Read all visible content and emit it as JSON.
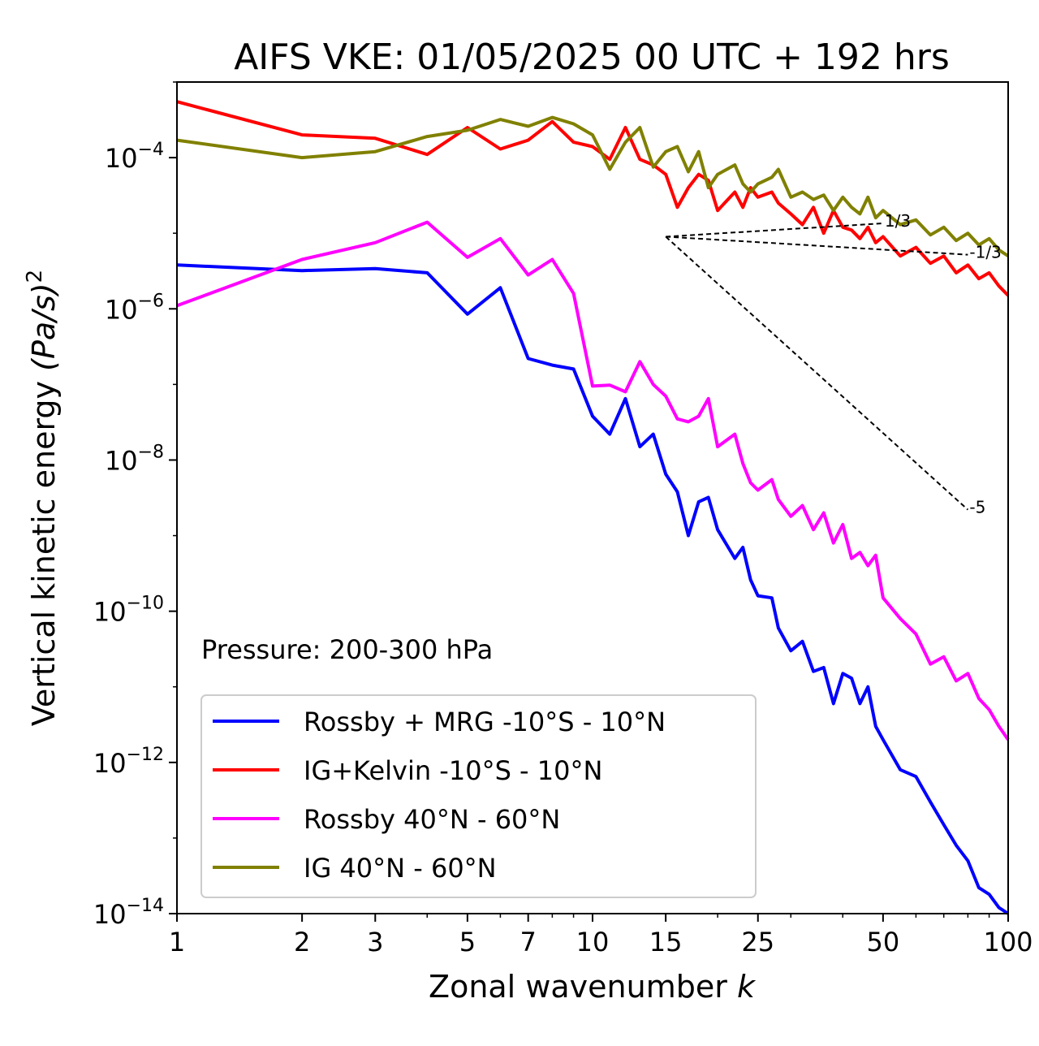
{
  "chart_data": {
    "type": "line",
    "title": "AIFS VKE: 01/05/2025 00 UTC + 192 hrs",
    "xlabel": "Zonal wavenumber",
    "xlabel_var": "k",
    "ylabel": "Vertical kinetic energy",
    "ylabel_units": "(Pa/s)",
    "ylabel_units_exp": "2",
    "xscale": "log",
    "yscale": "log",
    "xlim": [
      1,
      100
    ],
    "ylim": [
      1e-14,
      0.001
    ],
    "x_ticks": [
      1,
      2,
      3,
      5,
      7,
      10,
      15,
      25,
      50,
      100
    ],
    "x_tick_labels": [
      "1",
      "2",
      "3",
      "5",
      "7",
      "10",
      "15",
      "25",
      "50",
      "100"
    ],
    "y_ticks": [
      0.0001,
      1e-06,
      1e-08,
      1e-10,
      1e-12,
      1e-14
    ],
    "y_tick_base": "10",
    "y_tick_exponents": [
      "−4",
      "−6",
      "−8",
      "−10",
      "−12",
      "−14"
    ],
    "grid": false,
    "annotation": "Pressure: 200-300 hPa",
    "legend_position": "lower-left",
    "series": [
      {
        "name": "Rossby + MRG -10°S - 10°N",
        "color": "#0000ff",
        "x": [
          1,
          2,
          3,
          4,
          5,
          6,
          7,
          8,
          9,
          10,
          11,
          12,
          13,
          14,
          15,
          16,
          17,
          18,
          19,
          20,
          22,
          23,
          24,
          25,
          27,
          28,
          30,
          32,
          34,
          36,
          38,
          40,
          42,
          44,
          46,
          48,
          50,
          55,
          60,
          65,
          70,
          75,
          80,
          85,
          90,
          95,
          100
        ],
        "y": [
          3.8e-06,
          3.2e-06,
          3.4e-06,
          3e-06,
          8.5e-07,
          1.9e-06,
          2.2e-07,
          1.8e-07,
          1.6e-07,
          3.8e-08,
          2.2e-08,
          6.5e-08,
          1.5e-08,
          2.2e-08,
          6.5e-09,
          3.8e-09,
          1e-09,
          2.8e-09,
          3.2e-09,
          1.2e-09,
          5e-10,
          7e-10,
          2.6e-10,
          1.6e-10,
          1.5e-10,
          6e-11,
          3e-11,
          4e-11,
          1.6e-11,
          1.8e-11,
          6e-12,
          1.5e-11,
          1.3e-11,
          6e-12,
          1e-11,
          3e-12,
          2e-12,
          8e-13,
          6.5e-13,
          3e-13,
          1.5e-13,
          8e-14,
          5e-14,
          2.2e-14,
          1.8e-14,
          1.2e-14,
          1e-14
        ]
      },
      {
        "name": "IG+Kelvin -10°S - 10°N",
        "color": "#ff0000",
        "x": [
          1,
          2,
          3,
          4,
          5,
          6,
          7,
          8,
          9,
          10,
          11,
          12,
          13,
          14,
          15,
          16,
          17,
          18,
          19,
          20,
          22,
          23,
          24,
          25,
          27,
          28,
          30,
          32,
          34,
          36,
          38,
          40,
          42,
          44,
          46,
          48,
          50,
          55,
          60,
          65,
          70,
          75,
          80,
          85,
          90,
          95,
          100
        ],
        "y": [
          0.00055,
          0.0002,
          0.00018,
          0.00011,
          0.00025,
          0.00013,
          0.00017,
          0.0003,
          0.00016,
          0.00014,
          9.5e-05,
          0.00025,
          9.5e-05,
          8e-05,
          6e-05,
          2.2e-05,
          4e-05,
          6e-05,
          5e-05,
          2e-05,
          3.5e-05,
          2.2e-05,
          4e-05,
          3e-05,
          3.5e-05,
          2.5e-05,
          1.8e-05,
          1.3e-05,
          2.2e-05,
          1e-05,
          2e-05,
          1.2e-05,
          1.1e-05,
          8.5e-06,
          1.2e-05,
          7.5e-06,
          9e-06,
          5e-06,
          6.5e-06,
          4e-06,
          5e-06,
          3e-06,
          3.8e-06,
          2.5e-06,
          3e-06,
          2e-06,
          1.5e-06
        ]
      },
      {
        "name": "Rossby 40°N - 60°N",
        "color": "#ff00ff",
        "x": [
          1,
          2,
          3,
          4,
          5,
          6,
          7,
          8,
          9,
          10,
          11,
          12,
          13,
          14,
          15,
          16,
          17,
          18,
          19,
          20,
          22,
          23,
          24,
          25,
          27,
          28,
          30,
          32,
          34,
          36,
          38,
          40,
          42,
          44,
          46,
          48,
          50,
          55,
          60,
          65,
          70,
          75,
          80,
          85,
          90,
          95,
          100
        ],
        "y": [
          1.1e-06,
          4.5e-06,
          7.5e-06,
          1.4e-05,
          4.8e-06,
          8.5e-06,
          2.8e-06,
          4.5e-06,
          1.6e-06,
          9.5e-08,
          9.8e-08,
          8e-08,
          2e-07,
          1e-07,
          7e-08,
          3.5e-08,
          3.2e-08,
          3.8e-08,
          6.5e-08,
          1.5e-08,
          2.2e-08,
          9e-09,
          5e-09,
          4e-09,
          5.5e-09,
          3e-09,
          1.8e-09,
          2.5e-09,
          1.2e-09,
          2e-09,
          8e-10,
          1.4e-09,
          5e-10,
          6e-10,
          4e-10,
          5.5e-10,
          1.5e-10,
          8e-11,
          5e-11,
          2e-11,
          2.5e-11,
          1.2e-11,
          1.5e-11,
          7e-12,
          5e-12,
          3e-12,
          2e-12
        ]
      },
      {
        "name": "IG 40°N - 60°N",
        "color": "#808000",
        "x": [
          1,
          2,
          3,
          4,
          5,
          6,
          7,
          8,
          9,
          10,
          11,
          12,
          13,
          14,
          15,
          16,
          17,
          18,
          19,
          20,
          22,
          23,
          24,
          25,
          27,
          28,
          30,
          32,
          34,
          36,
          38,
          40,
          42,
          44,
          46,
          48,
          50,
          55,
          60,
          65,
          70,
          75,
          80,
          85,
          90,
          95,
          100
        ],
        "y": [
          0.00017,
          0.0001,
          0.00012,
          0.00019,
          0.00023,
          0.00032,
          0.00026,
          0.00034,
          0.00028,
          0.0002,
          7e-05,
          0.00016,
          0.00025,
          7.5e-05,
          0.00012,
          0.00014,
          6.5e-05,
          0.00012,
          4e-05,
          6e-05,
          8e-05,
          4.5e-05,
          3.5e-05,
          4.5e-05,
          5.5e-05,
          7e-05,
          3e-05,
          3.5e-05,
          2.8e-05,
          3.2e-05,
          2e-05,
          3e-05,
          2.2e-05,
          1.8e-05,
          3e-05,
          1.6e-05,
          2e-05,
          1.3e-05,
          1.5e-05,
          9.5e-06,
          1.2e-05,
          8e-06,
          1e-05,
          7e-06,
          8.5e-06,
          6e-06,
          5e-06
        ]
      }
    ],
    "reference_slopes": [
      {
        "label": "1/3",
        "x": [
          15,
          50
        ],
        "y": [
          9e-06,
          1.35e-05
        ]
      },
      {
        "label": "-1/3",
        "x": [
          15,
          80
        ],
        "y": [
          9e-06,
          5.2e-06
        ]
      },
      {
        "label": "-5",
        "x": [
          15,
          80
        ],
        "y": [
          9e-06,
          2.2e-09
        ]
      }
    ]
  }
}
